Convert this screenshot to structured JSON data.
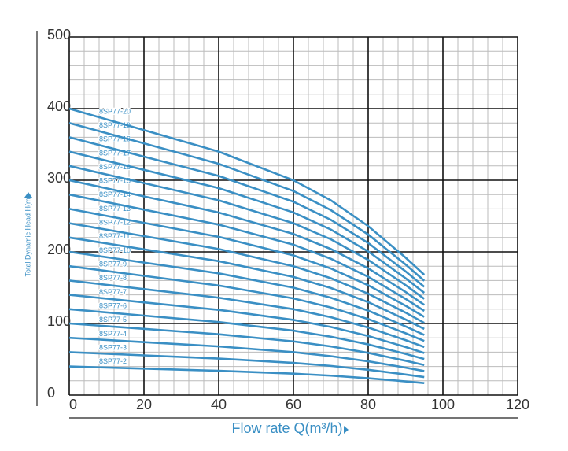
{
  "chart_data": {
    "type": "line",
    "x_label": "Flow rate Q(m³/h)",
    "y_label": "Total Dynamic Head H(m)",
    "xlim": [
      0,
      120
    ],
    "xticks": [
      0,
      20,
      40,
      60,
      80,
      100,
      120
    ],
    "ylim": [
      0,
      500
    ],
    "yticks": [
      0,
      100,
      200,
      300,
      400,
      500
    ],
    "grid": true,
    "color": "#3a8fc4",
    "x": [
      0,
      20,
      40,
      60,
      70,
      80,
      90,
      95
    ],
    "series": [
      {
        "name": "8SP77-2",
        "values": [
          40,
          37,
          34,
          30,
          27.2,
          23.6,
          19.2,
          16.8
        ]
      },
      {
        "name": "8SP77-3",
        "values": [
          60,
          55.5,
          51,
          45,
          40.8,
          35.4,
          28.8,
          25.2
        ]
      },
      {
        "name": "8SP77-4",
        "values": [
          80,
          74,
          68,
          60,
          54.4,
          47.2,
          38.4,
          33.6
        ]
      },
      {
        "name": "8SP77-5",
        "values": [
          100,
          92.5,
          85,
          75,
          68,
          59,
          48,
          42
        ]
      },
      {
        "name": "8SP77-6",
        "values": [
          120,
          111,
          102,
          90,
          81.6,
          70.8,
          57.6,
          50.4
        ]
      },
      {
        "name": "8SP77-7",
        "values": [
          140,
          129.5,
          119,
          105,
          95.2,
          82.6,
          67.2,
          58.8
        ]
      },
      {
        "name": "8SP77-8",
        "values": [
          160,
          148,
          136,
          120,
          108.8,
          94.4,
          76.8,
          67.2
        ]
      },
      {
        "name": "8SP77-9",
        "values": [
          180,
          166.5,
          153,
          135,
          122.4,
          106.2,
          86.4,
          75.6
        ]
      },
      {
        "name": "8SP77-10",
        "values": [
          200,
          185,
          170,
          150,
          136,
          118,
          96,
          84
        ]
      },
      {
        "name": "8SP77-11",
        "values": [
          220,
          203.5,
          187,
          165,
          149.6,
          129.8,
          105.6,
          92.4
        ]
      },
      {
        "name": "8SP77-12",
        "values": [
          240,
          222,
          204,
          180,
          163.2,
          141.6,
          115.2,
          100.8
        ]
      },
      {
        "name": "8SP77-13",
        "values": [
          260,
          240.5,
          221,
          195,
          176.8,
          153.4,
          124.8,
          109.2
        ]
      },
      {
        "name": "8SP77-14",
        "values": [
          280,
          259,
          238,
          210,
          190.4,
          165.2,
          134.4,
          117.6
        ]
      },
      {
        "name": "8SP77-15",
        "values": [
          300,
          277.5,
          255,
          225,
          204,
          177,
          144,
          126
        ]
      },
      {
        "name": "8SP77-16",
        "values": [
          320,
          296,
          272,
          240,
          217.6,
          188.8,
          153.6,
          134.4
        ]
      },
      {
        "name": "8SP77-17",
        "values": [
          340,
          314.5,
          289,
          255,
          231.2,
          200.6,
          163.2,
          142.8
        ]
      },
      {
        "name": "8SP77-18",
        "values": [
          360,
          333,
          306,
          270,
          244.8,
          212.4,
          172.8,
          151.2
        ]
      },
      {
        "name": "8SP77-19",
        "values": [
          380,
          351.5,
          323,
          285,
          258.4,
          224.2,
          182.4,
          159.6
        ]
      },
      {
        "name": "8SP77-20",
        "values": [
          400,
          370,
          340,
          300,
          272,
          236,
          192,
          168
        ]
      }
    ]
  }
}
